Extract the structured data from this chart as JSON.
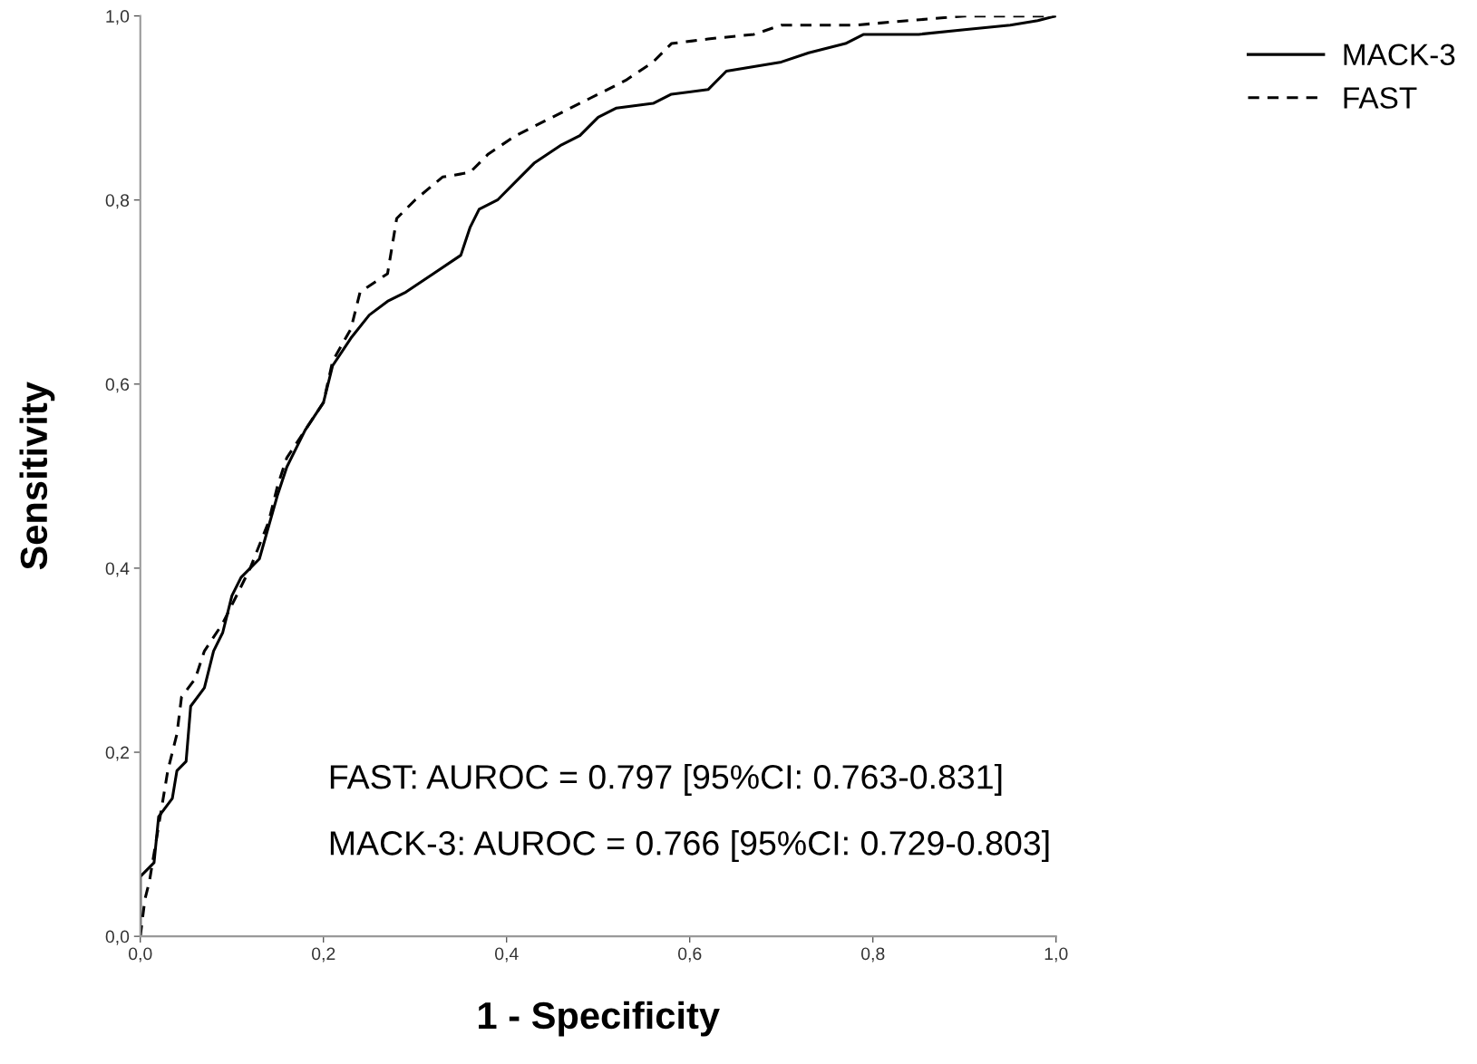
{
  "chart_data": {
    "type": "line",
    "xlabel": "1 - Specificity",
    "ylabel": "Sensitivity",
    "xlim": [
      0,
      1
    ],
    "ylim": [
      0,
      1
    ],
    "xticks": [
      {
        "value": 0,
        "label": "0,0"
      },
      {
        "value": 0.2,
        "label": "0,2"
      },
      {
        "value": 0.4,
        "label": "0,4"
      },
      {
        "value": 0.6,
        "label": "0,6"
      },
      {
        "value": 0.8,
        "label": "0,8"
      },
      {
        "value": 1,
        "label": "1,0"
      }
    ],
    "yticks": [
      {
        "value": 0,
        "label": "0,0"
      },
      {
        "value": 0.2,
        "label": "0,2"
      },
      {
        "value": 0.4,
        "label": "0,4"
      },
      {
        "value": 0.6,
        "label": "0,6"
      },
      {
        "value": 0.8,
        "label": "0,8"
      },
      {
        "value": 1,
        "label": "1,0"
      }
    ],
    "grid": false,
    "legend": "top right",
    "marker": "none",
    "series": [
      {
        "name": "MACK-3",
        "color": "#000000",
        "line_style": "solid",
        "x": [
          0,
          0.0,
          0.015,
          0.02,
          0.035,
          0.04,
          0.05,
          0.055,
          0.07,
          0.08,
          0.09,
          0.1,
          0.11,
          0.13,
          0.15,
          0.16,
          0.18,
          0.2,
          0.21,
          0.23,
          0.25,
          0.27,
          0.29,
          0.32,
          0.35,
          0.36,
          0.37,
          0.39,
          0.41,
          0.43,
          0.46,
          0.48,
          0.5,
          0.52,
          0.56,
          0.58,
          0.62,
          0.64,
          0.67,
          0.7,
          0.73,
          0.77,
          0.79,
          0.85,
          0.9,
          0.95,
          0.98,
          1
        ],
        "values": [
          0,
          0.065,
          0.08,
          0.13,
          0.15,
          0.18,
          0.19,
          0.25,
          0.27,
          0.31,
          0.33,
          0.37,
          0.39,
          0.41,
          0.48,
          0.51,
          0.55,
          0.58,
          0.62,
          0.65,
          0.675,
          0.69,
          0.7,
          0.72,
          0.74,
          0.77,
          0.79,
          0.8,
          0.82,
          0.84,
          0.86,
          0.87,
          0.89,
          0.9,
          0.905,
          0.915,
          0.92,
          0.94,
          0.945,
          0.95,
          0.96,
          0.97,
          0.98,
          0.98,
          0.985,
          0.99,
          0.995,
          1
        ]
      },
      {
        "name": "FAST",
        "color": "#000000",
        "line_style": "dashed",
        "x": [
          0,
          0.005,
          0.01,
          0.02,
          0.03,
          0.04,
          0.045,
          0.06,
          0.07,
          0.09,
          0.1,
          0.12,
          0.14,
          0.15,
          0.16,
          0.18,
          0.2,
          0.21,
          0.23,
          0.24,
          0.27,
          0.28,
          0.3,
          0.33,
          0.36,
          0.38,
          0.41,
          0.45,
          0.49,
          0.53,
          0.56,
          0.58,
          0.62,
          0.67,
          0.7,
          0.78,
          0.84,
          0.9,
          1
        ],
        "values": [
          0,
          0.04,
          0.06,
          0.12,
          0.18,
          0.22,
          0.26,
          0.28,
          0.31,
          0.34,
          0.36,
          0.4,
          0.45,
          0.49,
          0.52,
          0.55,
          0.58,
          0.625,
          0.66,
          0.7,
          0.72,
          0.78,
          0.8,
          0.825,
          0.83,
          0.85,
          0.87,
          0.89,
          0.91,
          0.93,
          0.95,
          0.97,
          0.975,
          0.98,
          0.99,
          0.99,
          0.995,
          1,
          1
        ]
      }
    ],
    "annotations": [
      "FAST: AUROC = 0.797 [95%CI: 0.763-0.831]",
      "MACK-3: AUROC = 0.766 [95%CI: 0.729-0.803]"
    ]
  }
}
